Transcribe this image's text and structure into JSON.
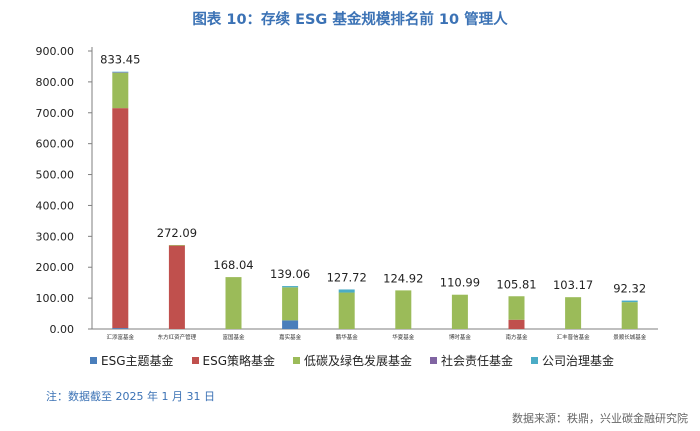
{
  "title": "图表 10：存续 ESG 基金规模排名前 10 管理人",
  "note": "注：数据截至 2025 年 1 月 31 日",
  "source": "数据来源：秩鼎，兴业碳金融研究院",
  "colors": {
    "ESG主题基金": "#4a7ebb",
    "ESG策略基金": "#c0504d",
    "低碳及绿色发展基金": "#9bbb59",
    "社会责任基金": "#8064a2",
    "公司治理基金": "#4bacc6"
  },
  "chart_data": {
    "type": "bar",
    "stacked": true,
    "ylim": [
      0,
      900
    ],
    "yticks": [
      "0.00",
      "100.00",
      "200.00",
      "300.00",
      "400.00",
      "500.00",
      "600.00",
      "700.00",
      "800.00",
      "900.00"
    ],
    "grid": false,
    "legend_position": "bottom",
    "categories": [
      "汇添富基金",
      "东方红资产管理",
      "富国基金",
      "嘉实基金",
      "鹏华基金",
      "华夏基金",
      "博时基金",
      "南方基金",
      "汇丰晋信基金",
      "景顺长城基金"
    ],
    "totals": [
      "833.45",
      "272.09",
      "168.04",
      "139.06",
      "127.72",
      "124.92",
      "110.99",
      "105.81",
      "103.17",
      "92.32"
    ],
    "series": [
      {
        "name": "ESG主题基金",
        "values": [
          3,
          0,
          0,
          28,
          0,
          0,
          0,
          0,
          0,
          0
        ]
      },
      {
        "name": "ESG策略基金",
        "values": [
          712,
          270,
          0,
          0,
          0,
          0,
          0,
          30,
          0,
          0
        ]
      },
      {
        "name": "低碳及绿色发展基金",
        "values": [
          115,
          2,
          168,
          107,
          118,
          125,
          111,
          76,
          103,
          87
        ]
      },
      {
        "name": "社会责任基金",
        "values": [
          1,
          0,
          0,
          0,
          0,
          0,
          0,
          0,
          0,
          0
        ]
      },
      {
        "name": "公司治理基金",
        "values": [
          2,
          0,
          0,
          4,
          10,
          0,
          0,
          0,
          0,
          5
        ]
      }
    ]
  }
}
